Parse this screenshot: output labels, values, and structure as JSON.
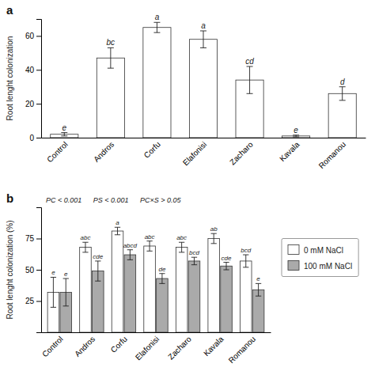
{
  "chart_data": [
    {
      "type": "bar",
      "title": "a",
      "categories": [
        "Control",
        "Andros",
        "Corfu",
        "Elafonisi",
        "Zacharo",
        "Kavala",
        "Romanou"
      ],
      "values": [
        2.0,
        47.0,
        65.0,
        58.0,
        34.0,
        1.0,
        26.0
      ],
      "errors": [
        1.0,
        6.0,
        3.0,
        5.0,
        8.0,
        0.5,
        4.0
      ],
      "letters": [
        "e",
        "bc",
        "a",
        "a",
        "cd",
        "e",
        "d"
      ],
      "color": "#ffffff",
      "ylabel": "Root lenght colonization",
      "ylim": [
        0,
        70
      ],
      "yticks": [
        0,
        20,
        40,
        60
      ],
      "grid": false
    },
    {
      "type": "bar",
      "title": "b",
      "categories": [
        "Control",
        "Andros",
        "Corfu",
        "Elafonisi",
        "Zacharo",
        "Kavala",
        "Romanou"
      ],
      "series": [
        {
          "name": "0 mM NaCl",
          "color": "#ffffff",
          "values": [
            32.0,
            68.0,
            81.0,
            69.0,
            68.0,
            75.0,
            57.0
          ],
          "errors": [
            12.0,
            4.0,
            3.0,
            4.0,
            4.0,
            4.0,
            5.0
          ],
          "letters": [
            "e",
            "abc",
            "a",
            "abc",
            "abc",
            "ab",
            "bcd"
          ]
        },
        {
          "name": "100 mM NaCl",
          "color": "#aaaaaa",
          "values": [
            32.0,
            49.0,
            62.0,
            43.0,
            57.0,
            53.0,
            34.0
          ],
          "errors": [
            11.0,
            8.0,
            4.0,
            4.0,
            3.0,
            3.0,
            5.0
          ],
          "letters": [
            "e",
            "cde",
            "abcd",
            "de",
            "bcd",
            "cde",
            "e"
          ]
        }
      ],
      "annotations": [
        "PC < 0.001",
        "PS < 0.001",
        "PC×S > 0.05"
      ],
      "ylabel": "Root lenght colonization (%)",
      "ylim": [
        0,
        100
      ],
      "yticks": [
        25,
        50,
        75
      ],
      "grid": false,
      "legend": "right"
    }
  ]
}
